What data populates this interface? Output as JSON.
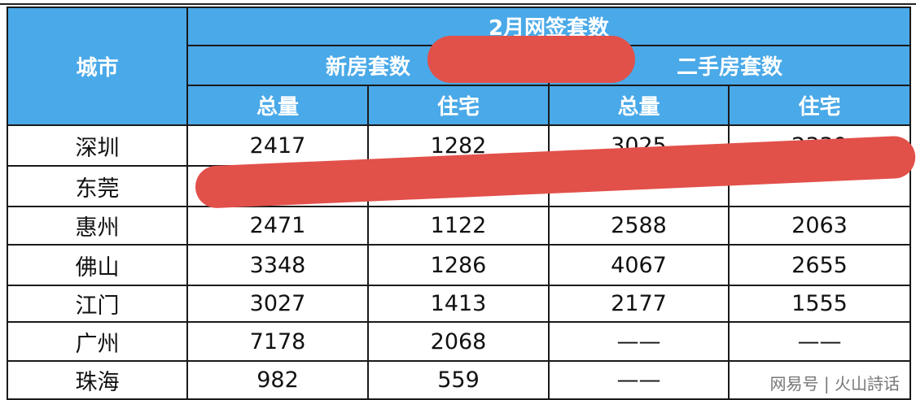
{
  "table": {
    "city_header": "城市",
    "group_header": "2月网签套数",
    "sub_headers": [
      "新房套数",
      "二手房套数"
    ],
    "col_headers": [
      "总量",
      "住宅",
      "总量",
      "住宅"
    ],
    "rows": [
      {
        "city": "深圳",
        "values": [
          "2417",
          "1282",
          "3025",
          "2339"
        ]
      },
      {
        "city": "东莞",
        "values": [
          "",
          "",
          "",
          ""
        ]
      },
      {
        "city": "惠州",
        "values": [
          "2471",
          "1122",
          "2588",
          "2063"
        ]
      },
      {
        "city": "佛山",
        "values": [
          "3348",
          "1286",
          "4067",
          "2655"
        ]
      },
      {
        "city": "江门",
        "values": [
          "3027",
          "1413",
          "2177",
          "1555"
        ]
      },
      {
        "city": "广州",
        "values": [
          "7178",
          "2068",
          "——",
          "——"
        ]
      },
      {
        "city": "珠海",
        "values": [
          "982",
          "559",
          "——",
          ""
        ]
      }
    ]
  },
  "watermark": "网易号 | 火山詩话",
  "colors": {
    "header_bg": "#4aa9e8",
    "redaction": "#e2504a"
  }
}
